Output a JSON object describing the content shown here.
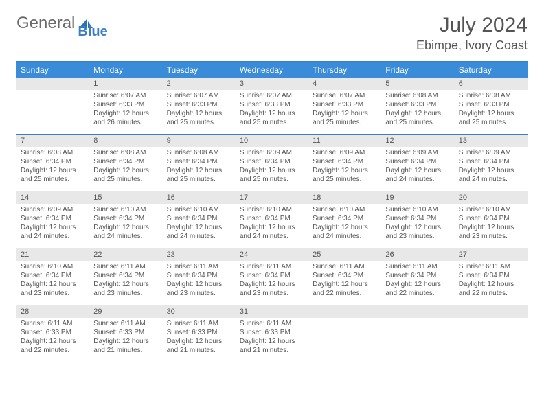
{
  "logo": {
    "text1": "General",
    "text2": "Blue"
  },
  "title": "July 2024",
  "location": "Ebimpe, Ivory Coast",
  "colors": {
    "header_bg": "#3a8bd8",
    "header_text": "#ffffff",
    "accent": "#3a7fc4",
    "daynum_bg": "#e8e8e8",
    "text": "#555555",
    "page_bg": "#ffffff"
  },
  "day_names": [
    "Sunday",
    "Monday",
    "Tuesday",
    "Wednesday",
    "Thursday",
    "Friday",
    "Saturday"
  ],
  "weeks": [
    [
      {
        "day": "",
        "sunrise": "",
        "sunset": "",
        "daylight": ""
      },
      {
        "day": "1",
        "sunrise": "Sunrise: 6:07 AM",
        "sunset": "Sunset: 6:33 PM",
        "daylight": "Daylight: 12 hours and 26 minutes."
      },
      {
        "day": "2",
        "sunrise": "Sunrise: 6:07 AM",
        "sunset": "Sunset: 6:33 PM",
        "daylight": "Daylight: 12 hours and 25 minutes."
      },
      {
        "day": "3",
        "sunrise": "Sunrise: 6:07 AM",
        "sunset": "Sunset: 6:33 PM",
        "daylight": "Daylight: 12 hours and 25 minutes."
      },
      {
        "day": "4",
        "sunrise": "Sunrise: 6:07 AM",
        "sunset": "Sunset: 6:33 PM",
        "daylight": "Daylight: 12 hours and 25 minutes."
      },
      {
        "day": "5",
        "sunrise": "Sunrise: 6:08 AM",
        "sunset": "Sunset: 6:33 PM",
        "daylight": "Daylight: 12 hours and 25 minutes."
      },
      {
        "day": "6",
        "sunrise": "Sunrise: 6:08 AM",
        "sunset": "Sunset: 6:33 PM",
        "daylight": "Daylight: 12 hours and 25 minutes."
      }
    ],
    [
      {
        "day": "7",
        "sunrise": "Sunrise: 6:08 AM",
        "sunset": "Sunset: 6:34 PM",
        "daylight": "Daylight: 12 hours and 25 minutes."
      },
      {
        "day": "8",
        "sunrise": "Sunrise: 6:08 AM",
        "sunset": "Sunset: 6:34 PM",
        "daylight": "Daylight: 12 hours and 25 minutes."
      },
      {
        "day": "9",
        "sunrise": "Sunrise: 6:08 AM",
        "sunset": "Sunset: 6:34 PM",
        "daylight": "Daylight: 12 hours and 25 minutes."
      },
      {
        "day": "10",
        "sunrise": "Sunrise: 6:09 AM",
        "sunset": "Sunset: 6:34 PM",
        "daylight": "Daylight: 12 hours and 25 minutes."
      },
      {
        "day": "11",
        "sunrise": "Sunrise: 6:09 AM",
        "sunset": "Sunset: 6:34 PM",
        "daylight": "Daylight: 12 hours and 25 minutes."
      },
      {
        "day": "12",
        "sunrise": "Sunrise: 6:09 AM",
        "sunset": "Sunset: 6:34 PM",
        "daylight": "Daylight: 12 hours and 24 minutes."
      },
      {
        "day": "13",
        "sunrise": "Sunrise: 6:09 AM",
        "sunset": "Sunset: 6:34 PM",
        "daylight": "Daylight: 12 hours and 24 minutes."
      }
    ],
    [
      {
        "day": "14",
        "sunrise": "Sunrise: 6:09 AM",
        "sunset": "Sunset: 6:34 PM",
        "daylight": "Daylight: 12 hours and 24 minutes."
      },
      {
        "day": "15",
        "sunrise": "Sunrise: 6:10 AM",
        "sunset": "Sunset: 6:34 PM",
        "daylight": "Daylight: 12 hours and 24 minutes."
      },
      {
        "day": "16",
        "sunrise": "Sunrise: 6:10 AM",
        "sunset": "Sunset: 6:34 PM",
        "daylight": "Daylight: 12 hours and 24 minutes."
      },
      {
        "day": "17",
        "sunrise": "Sunrise: 6:10 AM",
        "sunset": "Sunset: 6:34 PM",
        "daylight": "Daylight: 12 hours and 24 minutes."
      },
      {
        "day": "18",
        "sunrise": "Sunrise: 6:10 AM",
        "sunset": "Sunset: 6:34 PM",
        "daylight": "Daylight: 12 hours and 24 minutes."
      },
      {
        "day": "19",
        "sunrise": "Sunrise: 6:10 AM",
        "sunset": "Sunset: 6:34 PM",
        "daylight": "Daylight: 12 hours and 23 minutes."
      },
      {
        "day": "20",
        "sunrise": "Sunrise: 6:10 AM",
        "sunset": "Sunset: 6:34 PM",
        "daylight": "Daylight: 12 hours and 23 minutes."
      }
    ],
    [
      {
        "day": "21",
        "sunrise": "Sunrise: 6:10 AM",
        "sunset": "Sunset: 6:34 PM",
        "daylight": "Daylight: 12 hours and 23 minutes."
      },
      {
        "day": "22",
        "sunrise": "Sunrise: 6:11 AM",
        "sunset": "Sunset: 6:34 PM",
        "daylight": "Daylight: 12 hours and 23 minutes."
      },
      {
        "day": "23",
        "sunrise": "Sunrise: 6:11 AM",
        "sunset": "Sunset: 6:34 PM",
        "daylight": "Daylight: 12 hours and 23 minutes."
      },
      {
        "day": "24",
        "sunrise": "Sunrise: 6:11 AM",
        "sunset": "Sunset: 6:34 PM",
        "daylight": "Daylight: 12 hours and 23 minutes."
      },
      {
        "day": "25",
        "sunrise": "Sunrise: 6:11 AM",
        "sunset": "Sunset: 6:34 PM",
        "daylight": "Daylight: 12 hours and 22 minutes."
      },
      {
        "day": "26",
        "sunrise": "Sunrise: 6:11 AM",
        "sunset": "Sunset: 6:34 PM",
        "daylight": "Daylight: 12 hours and 22 minutes."
      },
      {
        "day": "27",
        "sunrise": "Sunrise: 6:11 AM",
        "sunset": "Sunset: 6:34 PM",
        "daylight": "Daylight: 12 hours and 22 minutes."
      }
    ],
    [
      {
        "day": "28",
        "sunrise": "Sunrise: 6:11 AM",
        "sunset": "Sunset: 6:33 PM",
        "daylight": "Daylight: 12 hours and 22 minutes."
      },
      {
        "day": "29",
        "sunrise": "Sunrise: 6:11 AM",
        "sunset": "Sunset: 6:33 PM",
        "daylight": "Daylight: 12 hours and 21 minutes."
      },
      {
        "day": "30",
        "sunrise": "Sunrise: 6:11 AM",
        "sunset": "Sunset: 6:33 PM",
        "daylight": "Daylight: 12 hours and 21 minutes."
      },
      {
        "day": "31",
        "sunrise": "Sunrise: 6:11 AM",
        "sunset": "Sunset: 6:33 PM",
        "daylight": "Daylight: 12 hours and 21 minutes."
      },
      {
        "day": "",
        "sunrise": "",
        "sunset": "",
        "daylight": ""
      },
      {
        "day": "",
        "sunrise": "",
        "sunset": "",
        "daylight": ""
      },
      {
        "day": "",
        "sunrise": "",
        "sunset": "",
        "daylight": ""
      }
    ]
  ]
}
